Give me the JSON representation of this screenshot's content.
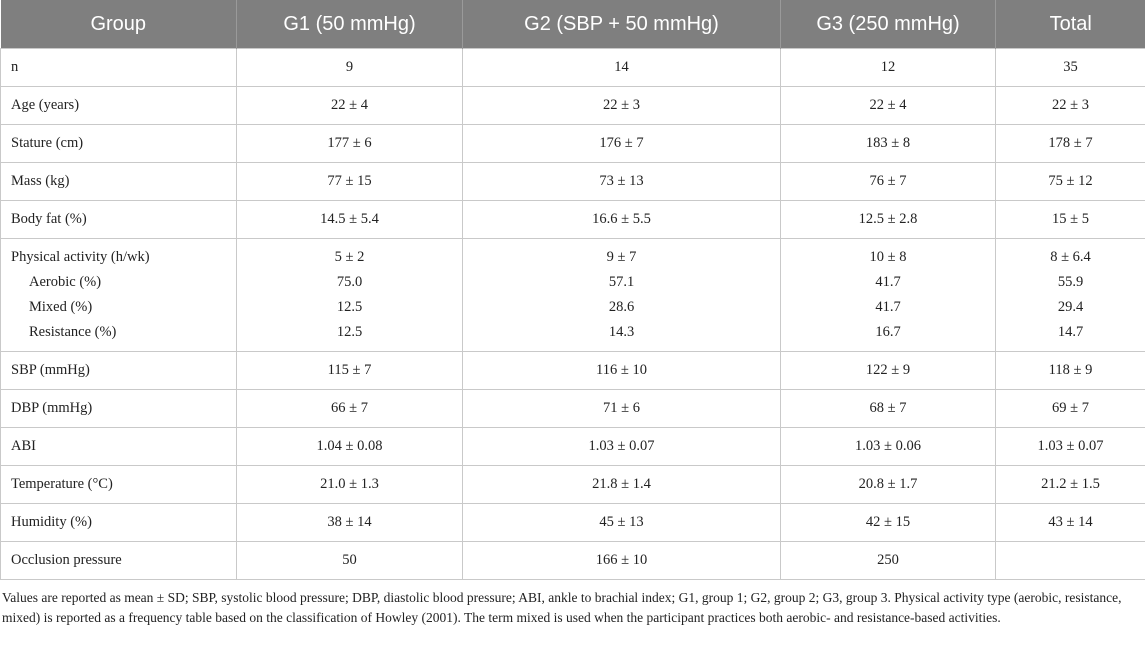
{
  "table": {
    "headers": [
      "Group",
      "G1 (50 mmHg)",
      "G2 (SBP + 50 mmHg)",
      "G3 (250 mmHg)",
      "Total"
    ],
    "rows": [
      {
        "label": "n",
        "g1": "9",
        "g2": "14",
        "g3": "12",
        "total": "35"
      },
      {
        "label": "Age (years)",
        "g1": "22 ± 4",
        "g2": "22 ± 3",
        "g3": "22 ± 4",
        "total": "22 ± 3"
      },
      {
        "label": "Stature (cm)",
        "g1": "177 ± 6",
        "g2": "176 ± 7",
        "g3": "183 ± 8",
        "total": "178 ± 7"
      },
      {
        "label": "Mass (kg)",
        "g1": "77 ± 15",
        "g2": "73 ± 13",
        "g3": "76 ± 7",
        "total": "75 ± 12"
      },
      {
        "label": "Body fat (%)",
        "g1": "14.5 ± 5.4",
        "g2": "16.6 ± 5.5",
        "g3": "12.5 ± 2.8",
        "total": "15 ± 5"
      }
    ],
    "activity": {
      "main": {
        "label": "Physical activity (h/wk)",
        "g1": "5 ± 2",
        "g2": "9 ± 7",
        "g3": "10 ± 8",
        "total": "8 ± 6.4"
      },
      "aerobic": {
        "label": "Aerobic (%)",
        "g1": "75.0",
        "g2": "57.1",
        "g3": "41.7",
        "total": "55.9"
      },
      "mixed": {
        "label": "Mixed (%)",
        "g1": "12.5",
        "g2": "28.6",
        "g3": "41.7",
        "total": "29.4"
      },
      "resistance": {
        "label": "Resistance (%)",
        "g1": "12.5",
        "g2": "14.3",
        "g3": "16.7",
        "total": "14.7"
      }
    },
    "rows2": [
      {
        "label": "SBP (mmHg)",
        "g1": "115 ± 7",
        "g2": "116 ± 10",
        "g3": "122 ± 9",
        "total": "118 ± 9"
      },
      {
        "label": "DBP (mmHg)",
        "g1": "66 ± 7",
        "g2": "71 ± 6",
        "g3": "68 ± 7",
        "total": "69 ± 7"
      },
      {
        "label": "ABI",
        "g1": "1.04 ± 0.08",
        "g2": "1.03 ± 0.07",
        "g3": "1.03 ± 0.06",
        "total": "1.03 ± 0.07"
      },
      {
        "label": "Temperature (°C)",
        "g1": "21.0 ± 1.3",
        "g2": "21.8 ± 1.4",
        "g3": "20.8 ± 1.7",
        "total": "21.2 ± 1.5"
      },
      {
        "label": "Humidity (%)",
        "g1": "38 ± 14",
        "g2": "45 ± 13",
        "g3": "42 ± 15",
        "total": "43 ± 14"
      },
      {
        "label": "Occlusion pressure",
        "g1": "50",
        "g2": "166 ± 10",
        "g3": "250",
        "total": ""
      }
    ]
  },
  "footnote": "Values are reported as mean ± SD; SBP, systolic blood pressure; DBP, diastolic blood pressure; ABI, ankle to brachial index; G1, group 1; G2, group 2; G3, group 3. Physical activity type (aerobic, resistance, mixed) is reported as a frequency table based on the classification of Howley (2001). The term mixed is used when the participant practices both aerobic- and resistance-based activities."
}
